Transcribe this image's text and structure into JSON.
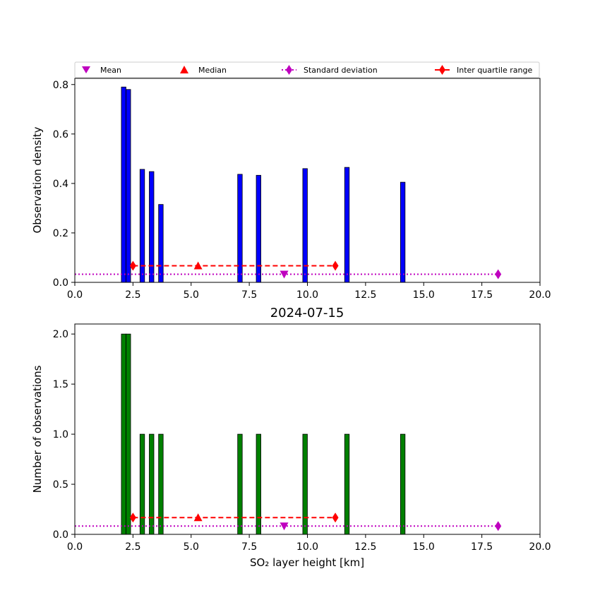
{
  "chart_data": [
    {
      "type": "bar",
      "subplot": "top",
      "title": "",
      "xlabel": "",
      "ylabel": "Observation density",
      "xlim": [
        0,
        20
      ],
      "ylim": [
        0,
        0.825
      ],
      "xticks": [
        "0.0",
        "2.5",
        "5.0",
        "7.5",
        "10.0",
        "12.5",
        "15.0",
        "17.5",
        "20.0"
      ],
      "yticks": [
        "0.0",
        "0.2",
        "0.4",
        "0.6",
        "0.8"
      ],
      "bar_color": "#0000ff",
      "bars": [
        {
          "x": 2.1,
          "value": 0.79
        },
        {
          "x": 2.3,
          "value": 0.78
        },
        {
          "x": 2.9,
          "value": 0.457
        },
        {
          "x": 3.3,
          "value": 0.448
        },
        {
          "x": 3.7,
          "value": 0.315
        },
        {
          "x": 7.1,
          "value": 0.437
        },
        {
          "x": 7.9,
          "value": 0.433
        },
        {
          "x": 9.9,
          "value": 0.46
        },
        {
          "x": 11.7,
          "value": 0.465
        },
        {
          "x": 14.1,
          "value": 0.405
        }
      ],
      "stats": {
        "mean": {
          "x": 9.0,
          "y": 0.033
        },
        "median": {
          "x": 5.3,
          "y": 0.067
        },
        "std_range": {
          "x": [
            0,
            18.2
          ],
          "y": 0.033
        },
        "iqr_range": {
          "x": [
            2.5,
            11.2
          ],
          "y": 0.067
        }
      },
      "legend": {
        "placement": "top",
        "entries": [
          "Mean",
          "Median",
          "Standard deviation",
          "Inter quartile range"
        ]
      }
    },
    {
      "type": "bar",
      "subplot": "bottom",
      "title": "2024-07-15",
      "xlabel": "SO₂ layer height [km]",
      "ylabel": "Number of observations",
      "xlim": [
        0,
        20
      ],
      "ylim": [
        0,
        2.1
      ],
      "xticks": [
        "0.0",
        "2.5",
        "5.0",
        "7.5",
        "10.0",
        "12.5",
        "15.0",
        "17.5",
        "20.0"
      ],
      "yticks": [
        "0.0",
        "0.5",
        "1.0",
        "1.5",
        "2.0"
      ],
      "bar_color": "#008000",
      "bars": [
        {
          "x": 2.1,
          "value": 2
        },
        {
          "x": 2.3,
          "value": 2
        },
        {
          "x": 2.9,
          "value": 1
        },
        {
          "x": 3.3,
          "value": 1
        },
        {
          "x": 3.7,
          "value": 1
        },
        {
          "x": 7.1,
          "value": 1
        },
        {
          "x": 7.9,
          "value": 1
        },
        {
          "x": 9.9,
          "value": 1
        },
        {
          "x": 11.7,
          "value": 1
        },
        {
          "x": 14.1,
          "value": 1
        }
      ],
      "stats": {
        "mean": {
          "x": 9.0,
          "y": 0.083
        },
        "median": {
          "x": 5.3,
          "y": 0.167
        },
        "std_range": {
          "x": [
            0,
            18.2
          ],
          "y": 0.083
        },
        "iqr_range": {
          "x": [
            2.5,
            11.2
          ],
          "y": 0.167
        }
      }
    }
  ],
  "colors": {
    "mean": "#bf00bf",
    "median": "#ff0000",
    "std": "#bf00bf",
    "iqr": "#ff0000"
  }
}
